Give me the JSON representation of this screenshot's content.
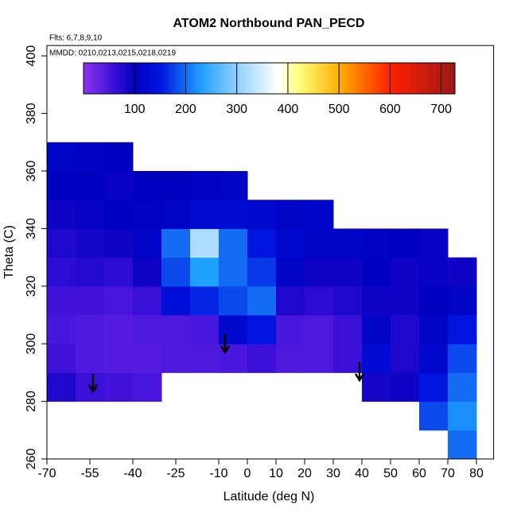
{
  "chart_data": {
    "type": "heatmap",
    "title": "ATOM2 Northbound PAN_PECD",
    "annotations": [
      "Flts: 6,7,8,9,10",
      "MMDD: 0210,0213,0215,0218,0219"
    ],
    "x_label": "Latitude (deg N)",
    "y_label": "Theta (C)",
    "xlim": [
      -70,
      86
    ],
    "ylim": [
      260,
      403.6
    ],
    "xticks": [
      -70,
      -55,
      -40,
      -25,
      -10,
      0,
      10,
      20,
      30,
      40,
      50,
      60,
      70,
      80
    ],
    "yticks": [
      260,
      280,
      300,
      320,
      340,
      360,
      380,
      400
    ],
    "x_edges": [
      -70,
      -60,
      -50,
      -40,
      -30,
      -20,
      -10,
      0,
      10,
      20,
      30,
      40,
      50,
      60,
      70,
      80
    ],
    "y_edges": [
      260,
      270,
      280,
      290,
      300,
      310,
      320,
      330,
      340,
      350,
      360,
      370
    ],
    "z": [
      [
        null,
        null,
        null,
        null,
        null,
        null,
        null,
        null,
        null,
        null,
        null,
        null,
        null,
        null,
        200
      ],
      [
        null,
        null,
        null,
        null,
        null,
        null,
        null,
        null,
        null,
        null,
        null,
        null,
        null,
        180,
        220
      ],
      [
        80,
        60,
        55,
        50,
        null,
        null,
        null,
        null,
        null,
        null,
        null,
        85,
        90,
        150,
        200
      ],
      [
        55,
        45,
        40,
        40,
        45,
        45,
        50,
        60,
        45,
        45,
        60,
        130,
        80,
        120,
        180
      ],
      [
        50,
        45,
        40,
        45,
        45,
        50,
        120,
        150,
        50,
        45,
        60,
        110,
        80,
        110,
        150
      ],
      [
        55,
        55,
        50,
        60,
        140,
        160,
        180,
        200,
        80,
        70,
        80,
        90,
        90,
        100,
        110
      ],
      [
        70,
        75,
        70,
        90,
        180,
        230,
        200,
        170,
        110,
        90,
        90,
        100,
        90,
        95,
        90
      ],
      [
        80,
        85,
        90,
        110,
        200,
        320,
        200,
        150,
        120,
        110,
        110,
        105,
        100,
        95,
        null
      ],
      [
        90,
        95,
        100,
        105,
        110,
        130,
        130,
        120,
        110,
        115,
        null,
        null,
        null,
        null,
        null
      ],
      [
        100,
        100,
        95,
        100,
        100,
        105,
        110,
        null,
        null,
        null,
        null,
        null,
        null,
        null,
        null
      ],
      [
        110,
        105,
        100,
        null,
        null,
        null,
        null,
        null,
        null,
        null,
        null,
        null,
        null,
        null,
        null
      ]
    ],
    "colorbar": {
      "lim": [
        0,
        727
      ],
      "ticks": [
        100,
        200,
        300,
        400,
        500,
        600,
        700
      ],
      "stops": [
        {
          "value": 0,
          "color": "#8b33f0"
        },
        {
          "value": 60,
          "color": "#3a10d8"
        },
        {
          "value": 100,
          "color": "#0000c0"
        },
        {
          "value": 150,
          "color": "#0014e0"
        },
        {
          "value": 230,
          "color": "#1ea0ff"
        },
        {
          "value": 300,
          "color": "#90d0ff"
        },
        {
          "value": 380,
          "color": "#ffffff"
        },
        {
          "value": 420,
          "color": "#ffff80"
        },
        {
          "value": 500,
          "color": "#ffb000"
        },
        {
          "value": 600,
          "color": "#ff2000"
        },
        {
          "value": 727,
          "color": "#a01818"
        }
      ]
    }
  }
}
